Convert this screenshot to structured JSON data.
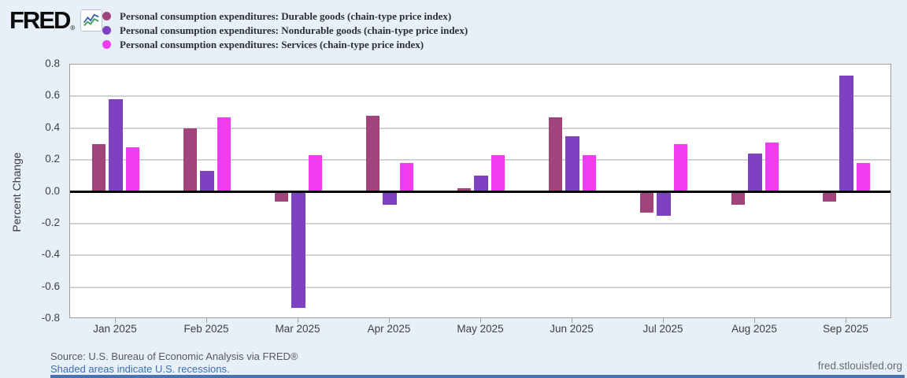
{
  "header": {
    "logo_text": "FRED",
    "logo_reg": "®"
  },
  "chart_data": {
    "type": "bar",
    "categories": [
      "Jan 2025",
      "Feb 2025",
      "Mar 2025",
      "Apr 2025",
      "May 2025",
      "Jun 2025",
      "Jul 2025",
      "Aug 2025",
      "Sep 2025"
    ],
    "series": [
      {
        "name": "Personal consumption expenditures: Durable goods (chain-type price index)",
        "color": "#a1447b",
        "values": [
          0.3,
          0.4,
          -0.06,
          0.48,
          0.02,
          0.47,
          -0.13,
          -0.08,
          -0.06
        ]
      },
      {
        "name": "Personal consumption expenditures: Nondurable goods (chain-type price index)",
        "color": "#7d41c2",
        "values": [
          0.58,
          0.13,
          -0.73,
          -0.08,
          0.1,
          0.35,
          -0.15,
          0.24,
          0.73
        ]
      },
      {
        "name": "Personal consumption expenditures: Services (chain-type price index)",
        "color": "#f03cf0",
        "values": [
          0.28,
          0.47,
          0.23,
          0.18,
          0.23,
          0.23,
          0.3,
          0.31,
          0.18
        ]
      }
    ],
    "ylabel": "Percent Change",
    "ylim": [
      -0.8,
      0.8
    ],
    "y_ticks": [
      "0.8",
      "0.6",
      "0.4",
      "0.2",
      "0.0",
      "-0.2",
      "-0.4",
      "-0.6",
      "-0.8"
    ],
    "grid": true,
    "zero_line": true,
    "legend_position": "top-left"
  },
  "footer": {
    "source": "Source: U.S. Bureau of Economic Analysis via FRED®",
    "recessions_link": "Shaded areas indicate U.S. recessions.",
    "site": "fred.stlouisfed.org"
  },
  "colors": {
    "background": "#e7f0f8",
    "plot_background": "#ffffff",
    "gridline": "#d2d2d2",
    "zero_line": "#000000",
    "bottom_strip": "#4a72ac",
    "durable": "#a1447b",
    "nondurable": "#7d41c2",
    "services": "#f03cf0"
  }
}
